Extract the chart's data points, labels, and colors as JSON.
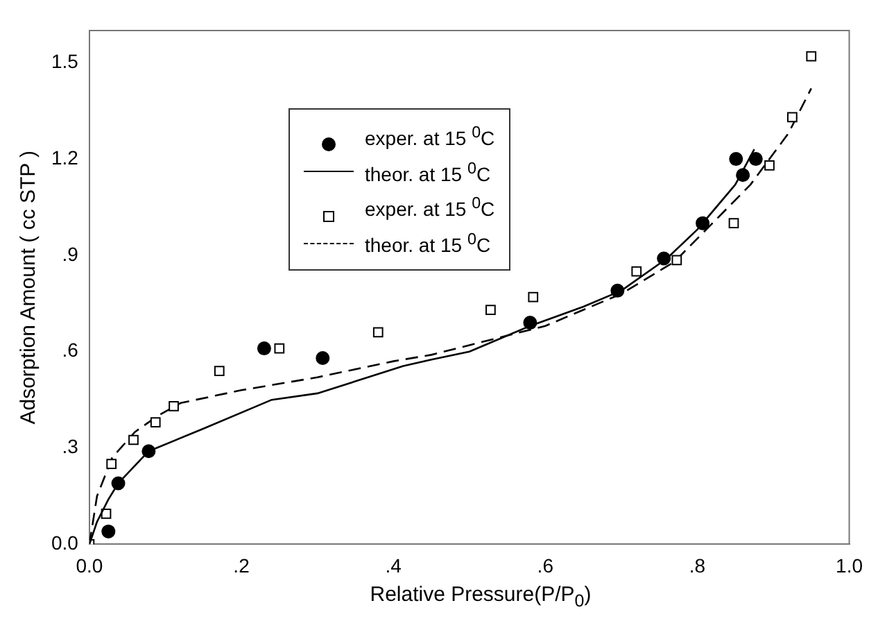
{
  "chart_data": {
    "type": "scatter",
    "xlabel": "Relative Pressure(P/P$_{0}$)",
    "ylabel": "Adsorption Amount ( cc STP )",
    "xlim": [
      0,
      1
    ],
    "ylim": [
      0,
      1.6
    ],
    "xticks": [
      {
        "value": 0,
        "label": "0.0"
      },
      {
        "value": 0.2,
        "label": ".2"
      },
      {
        "value": 0.4,
        "label": ".4"
      },
      {
        "value": 0.6,
        "label": ".6"
      },
      {
        "value": 0.8,
        "label": ".8"
      },
      {
        "value": 1,
        "label": "1.0"
      }
    ],
    "yticks": [
      {
        "value": 0,
        "label": "0.0"
      },
      {
        "value": 0.3,
        "label": ".3"
      },
      {
        "value": 0.6,
        "label": ".6"
      },
      {
        "value": 0.9,
        "label": ".9"
      },
      {
        "value": 1.2,
        "label": "1.2"
      },
      {
        "value": 1.5,
        "label": "1.5"
      }
    ],
    "grid": false,
    "legend": "top left",
    "series": [
      {
        "name": "exper. at 15 $^{0}$C",
        "type": "scatter",
        "marker": "circle",
        "color": "#000000",
        "x": [
          0.025,
          0.038,
          0.078,
          0.23,
          0.307,
          0.58,
          0.695,
          0.756,
          0.807,
          0.851,
          0.86,
          0.877
        ],
        "values": [
          0.04,
          0.19,
          0.29,
          0.61,
          0.58,
          0.69,
          0.79,
          0.89,
          1.0,
          1.2,
          1.15,
          1.2
        ]
      },
      {
        "name": "theor. at 15 $^{0}$C",
        "type": "line",
        "marker": "none",
        "line_style": "solid",
        "color": "#000000",
        "x": [
          0,
          0.01,
          0.025,
          0.038,
          0.078,
          0.15,
          0.22,
          0.24,
          0.3,
          0.413,
          0.45,
          0.5,
          0.58,
          0.65,
          0.7,
          0.76,
          0.8,
          0.85,
          0.875
        ],
        "values": [
          0,
          0.07,
          0.14,
          0.19,
          0.29,
          0.36,
          0.43,
          0.45,
          0.47,
          0.555,
          0.575,
          0.6,
          0.68,
          0.74,
          0.79,
          0.89,
          0.98,
          1.12,
          1.23
        ]
      },
      {
        "name": "exper. at 15 $^{0}$C",
        "type": "scatter",
        "marker": "square",
        "color": "#000000",
        "x": [
          0,
          0.022,
          0.029,
          0.058,
          0.087,
          0.111,
          0.171,
          0.25,
          0.38,
          0.528,
          0.584,
          0.72,
          0.773,
          0.848,
          0.895,
          0.925,
          0.95
        ],
        "values": [
          0,
          0.095,
          0.25,
          0.325,
          0.38,
          0.43,
          0.54,
          0.61,
          0.66,
          0.73,
          0.77,
          0.85,
          0.885,
          1.0,
          1.18,
          1.33,
          1.52
        ]
      },
      {
        "name": "theor. at 15 $^{0}$C",
        "type": "line",
        "marker": "none",
        "line_style": "dashed",
        "color": "#000000",
        "x": [
          0,
          0.01,
          0.03,
          0.06,
          0.09,
          0.12,
          0.2,
          0.3,
          0.4,
          0.45,
          0.5,
          0.6,
          0.7,
          0.77,
          0.82,
          0.87,
          0.92,
          0.95
        ],
        "values": [
          0,
          0.15,
          0.27,
          0.35,
          0.4,
          0.44,
          0.48,
          0.52,
          0.57,
          0.59,
          0.62,
          0.68,
          0.78,
          0.88,
          1.0,
          1.12,
          1.28,
          1.42
        ]
      }
    ]
  }
}
